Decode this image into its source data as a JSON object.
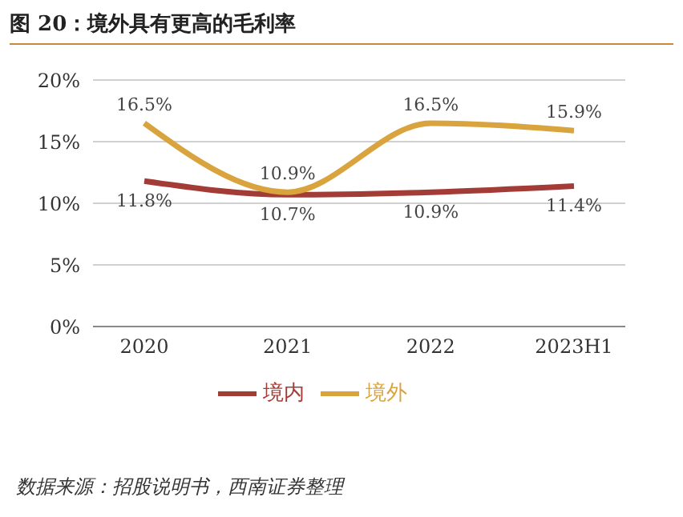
{
  "chart_data": {
    "type": "line",
    "title": "图 20：境外具有更高的毛利率",
    "categories": [
      "2020",
      "2021",
      "2022",
      "2023H1"
    ],
    "series": [
      {
        "name": "境内",
        "color": "#a33b36",
        "values": [
          11.8,
          10.7,
          10.9,
          11.4
        ],
        "value_labels": [
          "11.8%",
          "10.7%",
          "10.9%",
          "11.4%"
        ]
      },
      {
        "name": "境外",
        "color": "#d9a43e",
        "values": [
          16.5,
          10.9,
          16.5,
          15.9
        ],
        "value_labels": [
          "16.5%",
          "10.9%",
          "16.5%",
          "15.9%"
        ]
      }
    ],
    "ylim": [
      0,
      20
    ],
    "yticks": [
      {
        "value": 0,
        "label": "0%"
      },
      {
        "value": 5,
        "label": "5%"
      },
      {
        "value": 10,
        "label": "10%"
      },
      {
        "value": 15,
        "label": "15%"
      },
      {
        "value": 20,
        "label": "20%"
      }
    ],
    "grid": "y",
    "legend": "bottom",
    "marker": "none",
    "line_style": "solid",
    "annotations": [
      "数据来源：招股说明书，西南证券整理"
    ]
  }
}
